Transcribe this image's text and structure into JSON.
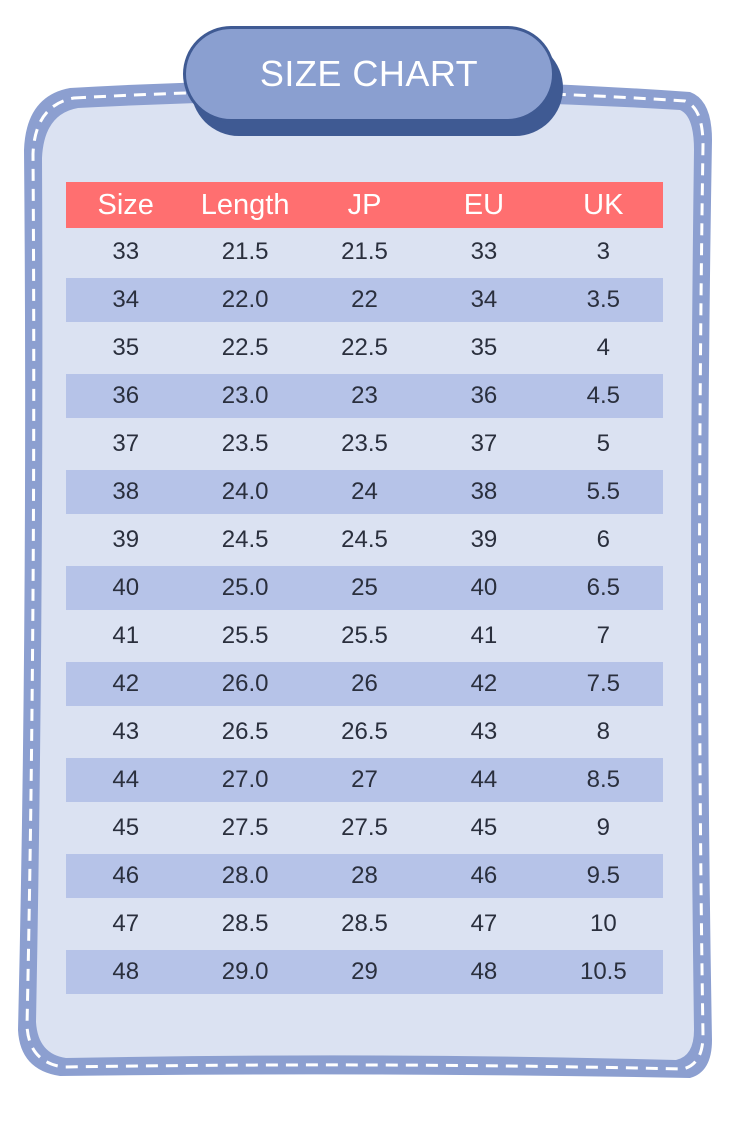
{
  "title": "SIZE CHART",
  "colors": {
    "frame_border": "#8c9fd0",
    "frame_fill": "#dbe2f2",
    "title_pill": "#8a9fd0",
    "title_shadow": "#3f5a93",
    "header_bg": "#ff6f70",
    "band_bg": "#b6c3e8"
  },
  "table": {
    "headers": [
      "Size",
      "Length",
      "JP",
      "EU",
      "UK"
    ],
    "rows": [
      [
        "33",
        "21.5",
        "21.5",
        "33",
        "3"
      ],
      [
        "34",
        "22.0",
        "22",
        "34",
        "3.5"
      ],
      [
        "35",
        "22.5",
        "22.5",
        "35",
        "4"
      ],
      [
        "36",
        "23.0",
        "23",
        "36",
        "4.5"
      ],
      [
        "37",
        "23.5",
        "23.5",
        "37",
        "5"
      ],
      [
        "38",
        "24.0",
        "24",
        "38",
        "5.5"
      ],
      [
        "39",
        "24.5",
        "24.5",
        "39",
        "6"
      ],
      [
        "40",
        "25.0",
        "25",
        "40",
        "6.5"
      ],
      [
        "41",
        "25.5",
        "25.5",
        "41",
        "7"
      ],
      [
        "42",
        "26.0",
        "26",
        "42",
        "7.5"
      ],
      [
        "43",
        "26.5",
        "26.5",
        "43",
        "8"
      ],
      [
        "44",
        "27.0",
        "27",
        "44",
        "8.5"
      ],
      [
        "45",
        "27.5",
        "27.5",
        "45",
        "9"
      ],
      [
        "46",
        "28.0",
        "28",
        "46",
        "9.5"
      ],
      [
        "47",
        "28.5",
        "28.5",
        "47",
        "10"
      ],
      [
        "48",
        "29.0",
        "29",
        "48",
        "10.5"
      ]
    ]
  }
}
